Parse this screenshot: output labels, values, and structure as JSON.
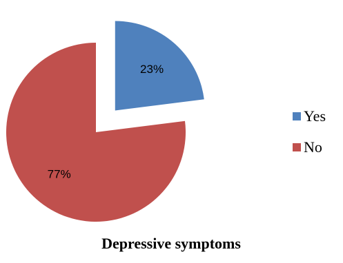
{
  "chart_data": {
    "type": "pie",
    "title": "Depressive symptoms",
    "exploded": true,
    "legend_position": "right",
    "slices": [
      {
        "label": "Yes",
        "value": 23,
        "value_label": "23%",
        "color": "#4f81bd"
      },
      {
        "label": "No",
        "value": 77,
        "value_label": "77%",
        "color": "#c0504d"
      }
    ]
  }
}
